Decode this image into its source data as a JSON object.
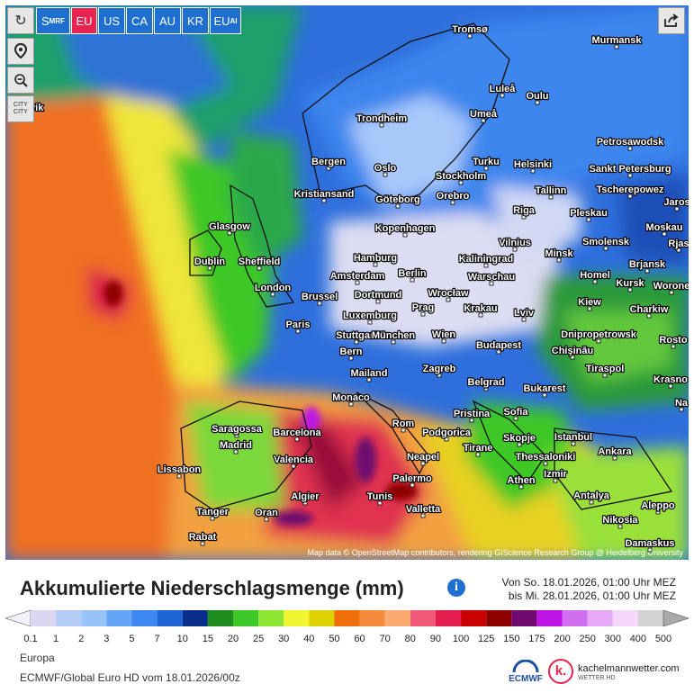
{
  "toolbar": {
    "buttons": [
      {
        "main": "S",
        "sub": "MRF"
      },
      {
        "main": "EU"
      },
      {
        "main": "US"
      },
      {
        "main": "CA"
      },
      {
        "main": "AU"
      },
      {
        "main": "KR"
      },
      {
        "main": "EU",
        "sub": "AI"
      }
    ],
    "city_button": [
      "CITY",
      "CITY"
    ]
  },
  "map": {
    "cities": [
      "ykjavik",
      "Tromsø",
      "Murmansk",
      "Luleå",
      "Oulu",
      "Umeå",
      "Trondheim",
      "Petrosawodsk",
      "Bergen",
      "Oslo",
      "Turku",
      "Helsinki",
      "Sankt Petersburg",
      "Stockholm",
      "Kristiansand",
      "Göteborg",
      "Orebro",
      "Tallinn",
      "Tscherepowez",
      "Jaros",
      "Riga",
      "Pleskau",
      "Glasgow",
      "Kopenhagen",
      "Moskau",
      "Vilnius",
      "Smolensk",
      "Rjas",
      "Dublin",
      "Sheffield",
      "Hamburg",
      "Kaliningrad",
      "Minsk",
      "Brjansk",
      "Amsterdam",
      "Berlin",
      "Warschau",
      "Homel",
      "London",
      "Brussel",
      "Dortmund",
      "Wrocław",
      "Kursk",
      "Worone",
      "Kiew",
      "Charkiw",
      "Paris",
      "Luxemburg",
      "Prag",
      "Krakau",
      "Lviv",
      "Stuttgart",
      "München",
      "Wien",
      "Dnipropetrowsk",
      "Rosto",
      "Bern",
      "Budapest",
      "Chişinău",
      "Mailand",
      "Zagreb",
      "Tiraspol",
      "Krasno",
      "Belgrad",
      "Bukarest",
      "Monaco",
      "Na",
      "Rom",
      "Pristina",
      "Sofia",
      "Saragossa",
      "Barcelona",
      "Podgorica",
      "Skopje",
      "Istanbul",
      "Madrid",
      "Tirane",
      "Valencia",
      "Neapel",
      "Thessaloniki",
      "Ankara",
      "Izmir",
      "Lissabon",
      "Palermo",
      "Athen",
      "Algier",
      "Tunis",
      "Antalya",
      "Aleppo",
      "Tanger",
      "Oran",
      "Valletta",
      "Nikosia",
      "Rabat",
      "Damaskus"
    ],
    "attribution": "Map data © OpenStreetMap contributors, rendering GIScience Research Group @ Heidelberg University"
  },
  "header": {
    "title": "Akkumulierte Niederschlagsmenge (mm)",
    "period_from": "Von So. 18.01.2026, 01:00 Uhr MEZ",
    "period_to": "bis Mi. 28.01.2026, 01:00 Uhr MEZ"
  },
  "legend": {
    "labels": [
      0.1,
      1,
      2,
      3,
      5,
      7,
      10,
      15,
      20,
      25,
      30,
      40,
      50,
      60,
      70,
      80,
      90,
      100,
      125,
      150,
      175,
      200,
      250,
      300,
      400,
      500
    ],
    "colors": [
      "#f2f0fa",
      "#dcd7f0",
      "#b4cdf5",
      "#96c3fa",
      "#64a5f5",
      "#3c87f0",
      "#1e64d2",
      "#0a2d8c",
      "#1e8c1e",
      "#3cc828",
      "#8ce632",
      "#f0f532",
      "#dcd200",
      "#f06e0a",
      "#f58c3c",
      "#faaa6e",
      "#f05a78",
      "#e61e50",
      "#c80000",
      "#8c0000",
      "#6e0a6e",
      "#be14e6",
      "#d26ef0",
      "#e6aaf5",
      "#f5d7fa",
      "#d2d2d2",
      "#aaaaaa"
    ]
  },
  "footer": {
    "region": "Europa",
    "model_run": "ECMWF/Global Euro HD vom 18.01.2026/00z",
    "ecmwf_logo": "ECMWF",
    "brand_letter": "k.",
    "brand_site": "kachelmannwetter.com",
    "brand_sub": "WETTER HD"
  }
}
